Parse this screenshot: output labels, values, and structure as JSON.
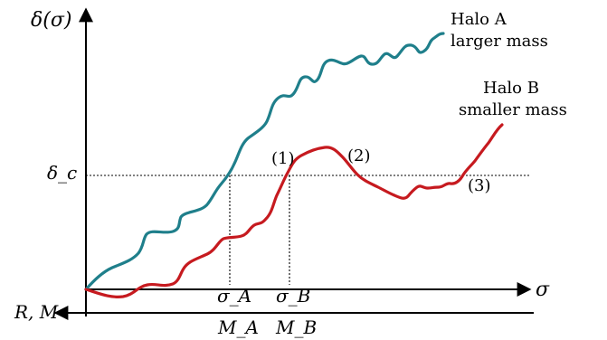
{
  "diagram": {
    "y_axis_label": "δ(σ)",
    "x_axis_label": "σ",
    "lower_axis_label": "R, M",
    "delta_c_label": "δ_c",
    "sigma_a_label": "σ_A",
    "sigma_b_label": "σ_B",
    "mass_a_label": "M_A",
    "mass_b_label": "M_B",
    "halo_a": {
      "name_line1": "Halo A",
      "name_line2": "larger mass",
      "color": "#1f7f8b"
    },
    "halo_b": {
      "name_line1": "Halo B",
      "name_line2": "smaller mass",
      "color": "#c61a1f"
    },
    "markers": {
      "one": "(1)",
      "two": "(2)",
      "three": "(3)"
    }
  }
}
